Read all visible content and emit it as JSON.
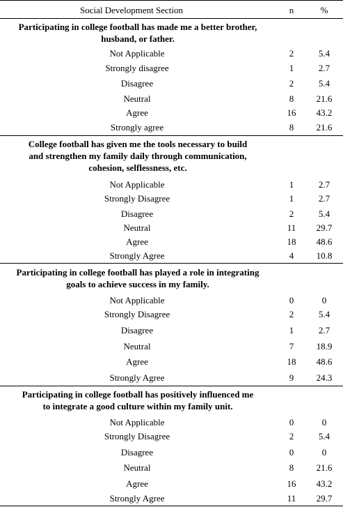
{
  "header": {
    "section": "Social Development Section",
    "n": "n",
    "pct": "%"
  },
  "questions": [
    {
      "lines": [
        "Participating in college football has made me a better brother,",
        "husband, or father."
      ],
      "rows": [
        {
          "label": "Not Applicable",
          "n": "2",
          "pct": "5.4"
        },
        {
          "label": "Strongly disagree",
          "n": "1",
          "pct": "2.7"
        },
        {
          "label": "Disagree",
          "n": "2",
          "pct": "5.4"
        },
        {
          "label": "Neutral",
          "n": "8",
          "pct": "21.6"
        },
        {
          "label": "Agree",
          "n": "16",
          "pct": "43.2"
        },
        {
          "label": "Strongly agree",
          "n": "8",
          "pct": "21.6"
        }
      ]
    },
    {
      "lines": [
        "College football has given me the tools necessary to build",
        "and strengthen my family daily through communication,",
        "cohesion, selflessness, etc."
      ],
      "rows": [
        {
          "label": "Not Applicable",
          "n": "1",
          "pct": "2.7"
        },
        {
          "label": "Strongly Disagree",
          "n": "1",
          "pct": "2.7"
        },
        {
          "label": "Disagree",
          "n": "2",
          "pct": "5.4"
        },
        {
          "label": "Neutral",
          "n": "11",
          "pct": "29.7"
        },
        {
          "label": "Agree",
          "n": "18",
          "pct": "48.6"
        },
        {
          "label": "Strongly Agree",
          "n": "4",
          "pct": "10.8"
        }
      ]
    },
    {
      "lines": [
        "Participating in college football has played a role in integrating",
        "goals to achieve success in my family."
      ],
      "rows": [
        {
          "label": "Not Applicable",
          "n": "0",
          "pct": "0"
        },
        {
          "label": "Strongly Disagree",
          "n": "2",
          "pct": "5.4"
        },
        {
          "label": "Disagree",
          "n": "1",
          "pct": "2.7"
        },
        {
          "label": "Neutral",
          "n": "7",
          "pct": "18.9"
        },
        {
          "label": "Agree",
          "n": "18",
          "pct": "48.6"
        },
        {
          "label": "Strongly Agree",
          "n": "9",
          "pct": "24.3"
        }
      ]
    },
    {
      "lines": [
        "Participating in college football has positively influenced me",
        "to integrate a good culture within my family unit."
      ],
      "rows": [
        {
          "label": "Not Applicable",
          "n": "0",
          "pct": "0"
        },
        {
          "label": "Strongly Disagree",
          "n": "2",
          "pct": "5.4"
        },
        {
          "label": "Disagree",
          "n": "0",
          "pct": "0"
        },
        {
          "label": "Neutral",
          "n": "8",
          "pct": "21.6"
        },
        {
          "label": "Agree",
          "n": "16",
          "pct": "43.2"
        },
        {
          "label": "Strongly Agree",
          "n": "11",
          "pct": "29.7"
        }
      ]
    }
  ]
}
